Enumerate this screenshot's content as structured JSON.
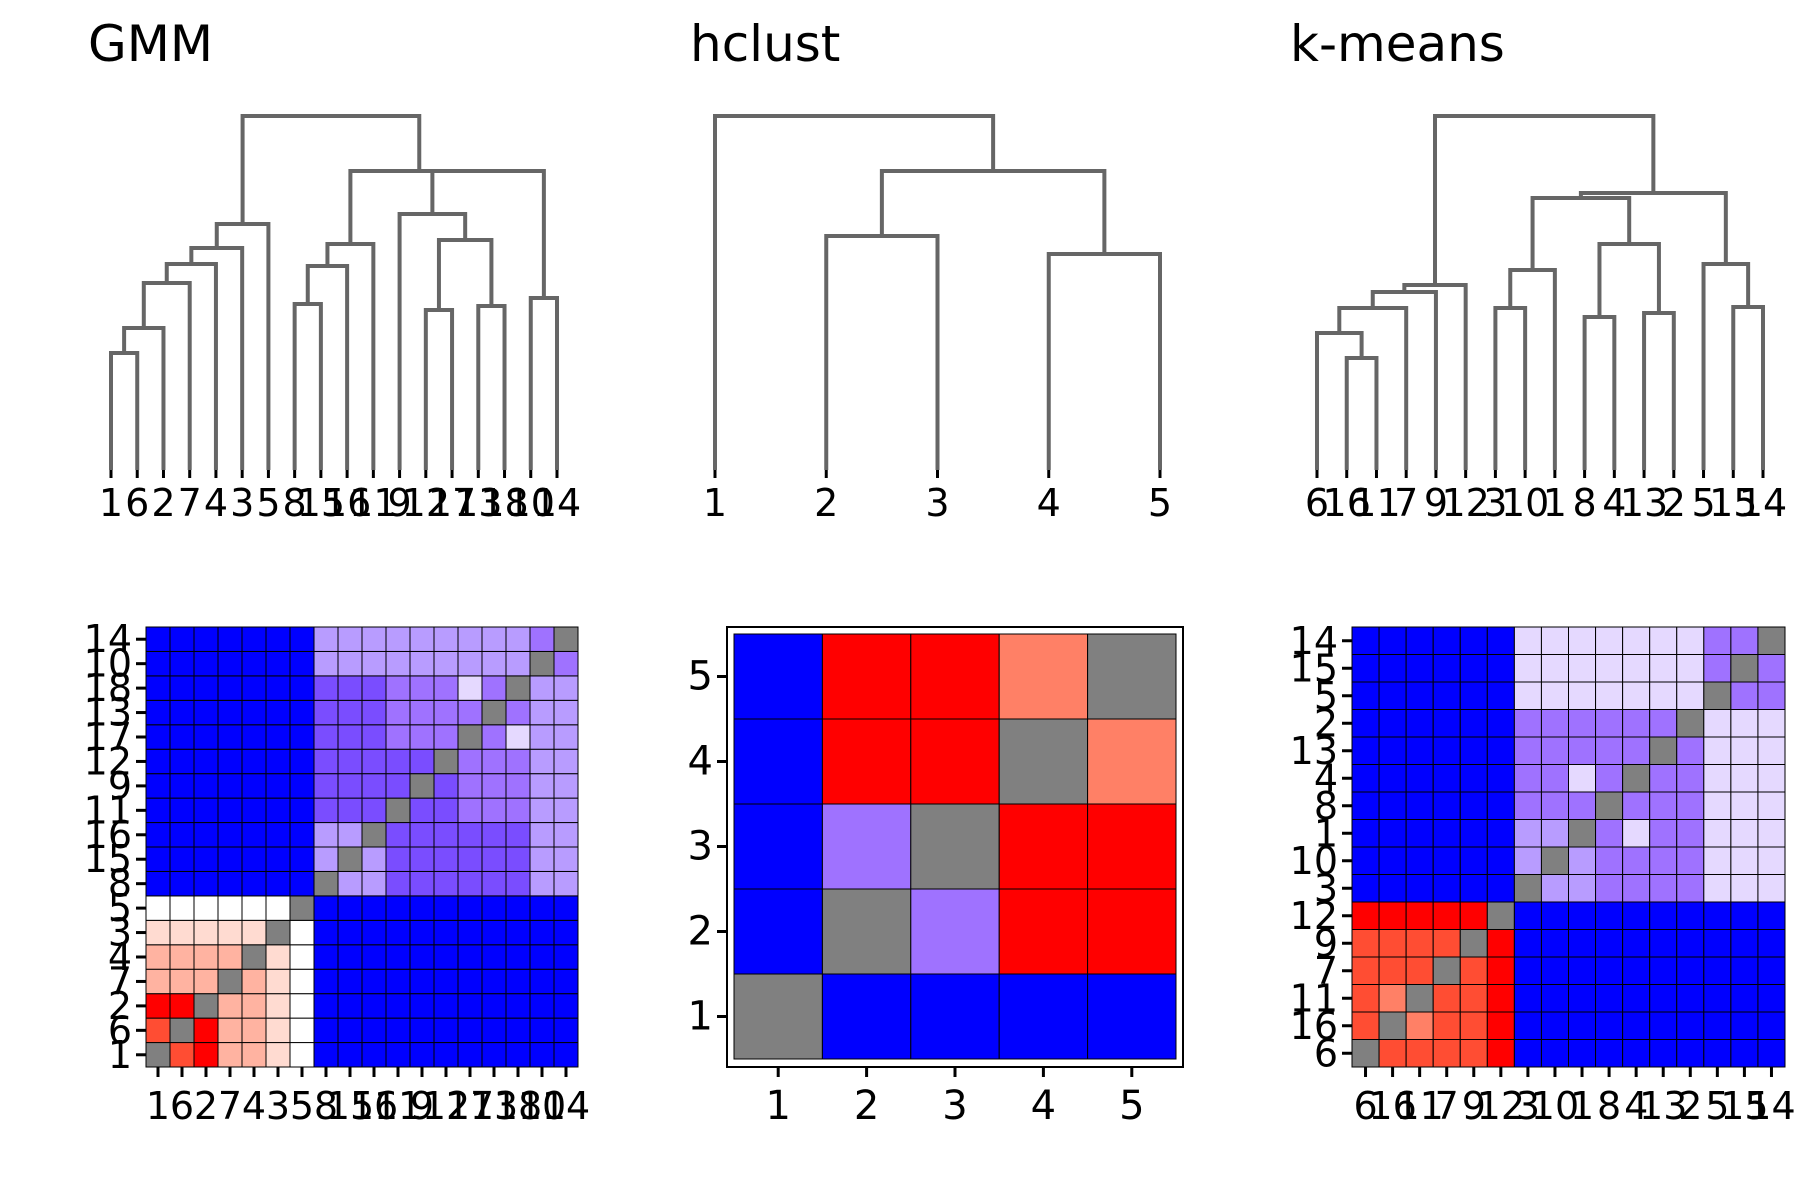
{
  "chart_data": [
    {
      "type": "dendrogram",
      "title": "GMM",
      "leaf_labels": [
        "1",
        "6",
        "2",
        "7",
        "4",
        "3",
        "5",
        "8",
        "15",
        "16",
        "11",
        "9",
        "12",
        "17",
        "13",
        "18",
        "10",
        "14"
      ]
    },
    {
      "type": "dendrogram",
      "title": "hclust",
      "leaf_labels": [
        "1",
        "2",
        "3",
        "4",
        "5"
      ]
    },
    {
      "type": "dendrogram",
      "title": "k-means",
      "leaf_labels": [
        "6",
        "16",
        "11",
        "7",
        "9",
        "12",
        "3",
        "10",
        "1",
        "8",
        "4",
        "13",
        "2",
        "5",
        "15",
        "14"
      ]
    },
    {
      "type": "heatmap",
      "panel": "GMM",
      "x_labels": [
        "1",
        "6",
        "2",
        "7",
        "4",
        "3",
        "5",
        "8",
        "15",
        "16",
        "11",
        "9",
        "12",
        "17",
        "13",
        "18",
        "10",
        "14"
      ],
      "y_labels": [
        "1",
        "6",
        "2",
        "7",
        "4",
        "3",
        "5",
        "8",
        "15",
        "16",
        "11",
        "9",
        "12",
        "17",
        "13",
        "18",
        "10",
        "14"
      ],
      "groups": [
        7,
        11
      ]
    },
    {
      "type": "heatmap",
      "panel": "hclust",
      "x_labels": [
        "1",
        "2",
        "3",
        "4",
        "5"
      ],
      "y_labels": [
        "1",
        "2",
        "3",
        "4",
        "5"
      ],
      "matrix": [
        [
          "diag",
          "blue",
          "blue",
          "blue",
          "blue"
        ],
        [
          "blue",
          "diag",
          "lightpurple",
          "red",
          "red"
        ],
        [
          "blue",
          "lightpurple",
          "diag",
          "red",
          "red"
        ],
        [
          "blue",
          "red",
          "red",
          "diag",
          "salmon"
        ],
        [
          "blue",
          "red",
          "red",
          "salmon",
          "diag"
        ]
      ]
    },
    {
      "type": "heatmap",
      "panel": "k-means",
      "x_labels": [
        "6",
        "16",
        "11",
        "7",
        "9",
        "12",
        "3",
        "10",
        "1",
        "8",
        "4",
        "13",
        "2",
        "5",
        "15",
        "14"
      ],
      "y_labels": [
        "6",
        "16",
        "11",
        "7",
        "9",
        "12",
        "3",
        "10",
        "1",
        "8",
        "4",
        "13",
        "2",
        "5",
        "15",
        "14"
      ],
      "groups": [
        6,
        10
      ]
    }
  ],
  "colors": {
    "line": "#666666",
    "diag": "#808080",
    "blue": "#0000ff",
    "red": "#ff0000",
    "red_mid": "#ff4d33",
    "salmon": "#ff8066",
    "pink": "#ffb3a1",
    "pink_light": "#ffdbd1",
    "white": "#ffffff",
    "purple_dark": "#7a4dff",
    "purple_mid": "#9f72ff",
    "purple_light": "#b89cff",
    "purple_lighter": "#d0b8ff",
    "purple_pale": "#e5d9ff"
  }
}
